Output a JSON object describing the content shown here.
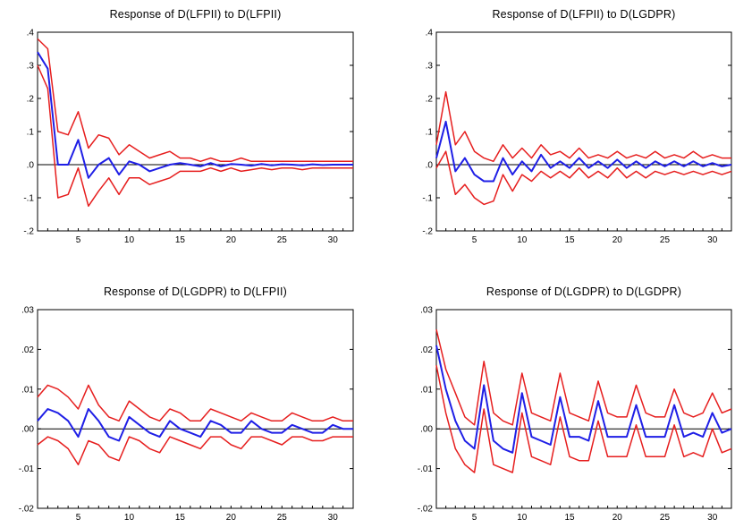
{
  "chart_data": [
    {
      "type": "line",
      "title": "Response of D(LFPII) to D(LFPII)",
      "xlim": [
        1,
        32
      ],
      "ylim": [
        -0.2,
        0.4
      ],
      "x_ticks": [
        5,
        10,
        15,
        20,
        25,
        30
      ],
      "y_ticks": [
        ".4",
        ".3",
        ".2",
        ".1",
        ".0",
        "-.1",
        "-.2"
      ],
      "y_tick_values": [
        0.4,
        0.3,
        0.2,
        0.1,
        0.0,
        -0.1,
        -0.2
      ],
      "zero_line": true,
      "series": [
        {
          "role": "response",
          "color": "#1f1fe6",
          "values": [
            0.34,
            0.29,
            0.0,
            0.0,
            0.075,
            -0.04,
            0.0,
            0.02,
            -0.03,
            0.01,
            0.0,
            -0.02,
            -0.01,
            0.0,
            0.005,
            0.0,
            -0.005,
            0.005,
            -0.005,
            0.002,
            0.0,
            -0.003,
            0.002,
            -0.002,
            0.001,
            0.0,
            -0.002,
            0.001,
            -0.001,
            0.0,
            0.0,
            0.0
          ]
        },
        {
          "role": "upper band",
          "color": "#e61e1e",
          "values": [
            0.38,
            0.35,
            0.1,
            0.09,
            0.16,
            0.05,
            0.09,
            0.08,
            0.03,
            0.06,
            0.04,
            0.02,
            0.03,
            0.04,
            0.02,
            0.02,
            0.01,
            0.02,
            0.01,
            0.01,
            0.02,
            0.01,
            0.01,
            0.01,
            0.01,
            0.01,
            0.01,
            0.01,
            0.01,
            0.01,
            0.01,
            0.01
          ]
        },
        {
          "role": "lower band",
          "color": "#e61e1e",
          "values": [
            0.3,
            0.23,
            -0.1,
            -0.09,
            -0.01,
            -0.125,
            -0.08,
            -0.04,
            -0.09,
            -0.04,
            -0.04,
            -0.06,
            -0.05,
            -0.04,
            -0.02,
            -0.02,
            -0.02,
            -0.01,
            -0.02,
            -0.01,
            -0.02,
            -0.015,
            -0.01,
            -0.015,
            -0.01,
            -0.01,
            -0.015,
            -0.01,
            -0.01,
            -0.01,
            -0.01,
            -0.01
          ]
        }
      ]
    },
    {
      "type": "line",
      "title": "Response of D(LFPII) to D(LGDPR)",
      "xlim": [
        1,
        32
      ],
      "ylim": [
        -0.2,
        0.4
      ],
      "x_ticks": [
        5,
        10,
        15,
        20,
        25,
        30
      ],
      "y_ticks": [
        ".4",
        ".3",
        ".2",
        ".1",
        ".0",
        "-.1",
        "-.2"
      ],
      "y_tick_values": [
        0.4,
        0.3,
        0.2,
        0.1,
        0.0,
        -0.1,
        -0.2
      ],
      "zero_line": true,
      "series": [
        {
          "role": "response",
          "color": "#1f1fe6",
          "values": [
            0.02,
            0.13,
            -0.02,
            0.02,
            -0.03,
            -0.05,
            -0.05,
            0.02,
            -0.03,
            0.01,
            -0.02,
            0.03,
            -0.01,
            0.01,
            -0.01,
            0.02,
            -0.01,
            0.01,
            -0.01,
            0.015,
            -0.01,
            0.01,
            -0.01,
            0.01,
            -0.005,
            0.01,
            -0.005,
            0.01,
            -0.005,
            0.005,
            -0.005,
            0.0
          ]
        },
        {
          "role": "upper band",
          "color": "#e61e1e",
          "values": [
            0.06,
            0.22,
            0.06,
            0.1,
            0.04,
            0.02,
            0.01,
            0.06,
            0.02,
            0.05,
            0.02,
            0.06,
            0.03,
            0.04,
            0.02,
            0.05,
            0.02,
            0.03,
            0.02,
            0.04,
            0.02,
            0.03,
            0.02,
            0.04,
            0.02,
            0.03,
            0.02,
            0.04,
            0.02,
            0.03,
            0.02,
            0.02
          ]
        },
        {
          "role": "lower band",
          "color": "#e61e1e",
          "values": [
            -0.01,
            0.04,
            -0.09,
            -0.06,
            -0.1,
            -0.12,
            -0.11,
            -0.03,
            -0.08,
            -0.03,
            -0.05,
            -0.02,
            -0.04,
            -0.02,
            -0.04,
            -0.01,
            -0.04,
            -0.02,
            -0.04,
            -0.01,
            -0.04,
            -0.02,
            -0.04,
            -0.02,
            -0.03,
            -0.02,
            -0.03,
            -0.02,
            -0.03,
            -0.02,
            -0.03,
            -0.02
          ]
        }
      ]
    },
    {
      "type": "line",
      "title": "Response of D(LGDPR) to D(LFPII)",
      "xlim": [
        1,
        32
      ],
      "ylim": [
        -0.02,
        0.03
      ],
      "x_ticks": [
        5,
        10,
        15,
        20,
        25,
        30
      ],
      "y_ticks": [
        ".03",
        ".02",
        ".01",
        ".00",
        "-.01",
        "-.02"
      ],
      "y_tick_values": [
        0.03,
        0.02,
        0.01,
        0.0,
        -0.01,
        -0.02
      ],
      "zero_line": true,
      "series": [
        {
          "role": "response",
          "color": "#1f1fe6",
          "values": [
            0.002,
            0.005,
            0.004,
            0.002,
            -0.002,
            0.005,
            0.002,
            -0.002,
            -0.003,
            0.003,
            0.001,
            -0.001,
            -0.002,
            0.002,
            0.0,
            -0.001,
            -0.002,
            0.002,
            0.001,
            -0.001,
            -0.001,
            0.002,
            0.0,
            -0.001,
            -0.001,
            0.001,
            0.0,
            -0.001,
            -0.001,
            0.001,
            0.0,
            0.0
          ]
        },
        {
          "role": "upper band",
          "color": "#e61e1e",
          "values": [
            0.008,
            0.011,
            0.01,
            0.008,
            0.005,
            0.011,
            0.006,
            0.003,
            0.002,
            0.007,
            0.005,
            0.003,
            0.002,
            0.005,
            0.004,
            0.002,
            0.002,
            0.005,
            0.004,
            0.003,
            0.002,
            0.004,
            0.003,
            0.002,
            0.002,
            0.004,
            0.003,
            0.002,
            0.002,
            0.003,
            0.002,
            0.002
          ]
        },
        {
          "role": "lower band",
          "color": "#e61e1e",
          "values": [
            -0.004,
            -0.002,
            -0.003,
            -0.005,
            -0.009,
            -0.003,
            -0.004,
            -0.007,
            -0.008,
            -0.002,
            -0.003,
            -0.005,
            -0.006,
            -0.002,
            -0.003,
            -0.004,
            -0.005,
            -0.002,
            -0.002,
            -0.004,
            -0.005,
            -0.002,
            -0.002,
            -0.003,
            -0.004,
            -0.002,
            -0.002,
            -0.003,
            -0.003,
            -0.002,
            -0.002,
            -0.002
          ]
        }
      ]
    },
    {
      "type": "line",
      "title": "Response of D(LGDPR) to D(LGDPR)",
      "xlim": [
        1,
        32
      ],
      "ylim": [
        -0.02,
        0.03
      ],
      "x_ticks": [
        5,
        10,
        15,
        20,
        25,
        30
      ],
      "y_ticks": [
        ".03",
        ".02",
        ".01",
        ".00",
        "-.01",
        "-.02"
      ],
      "y_tick_values": [
        0.03,
        0.02,
        0.01,
        0.0,
        -0.01,
        -0.02
      ],
      "zero_line": true,
      "series": [
        {
          "role": "response",
          "color": "#1f1fe6",
          "values": [
            0.021,
            0.01,
            0.002,
            -0.003,
            -0.005,
            0.011,
            -0.003,
            -0.005,
            -0.006,
            0.009,
            -0.002,
            -0.003,
            -0.004,
            0.008,
            -0.002,
            -0.002,
            -0.003,
            0.007,
            -0.002,
            -0.002,
            -0.002,
            0.006,
            -0.002,
            -0.002,
            -0.002,
            0.006,
            -0.002,
            -0.001,
            -0.002,
            0.004,
            -0.001,
            0.0
          ]
        },
        {
          "role": "upper band",
          "color": "#e61e1e",
          "values": [
            0.025,
            0.015,
            0.009,
            0.003,
            0.001,
            0.017,
            0.004,
            0.002,
            0.001,
            0.014,
            0.004,
            0.003,
            0.002,
            0.014,
            0.004,
            0.003,
            0.002,
            0.012,
            0.004,
            0.003,
            0.003,
            0.011,
            0.004,
            0.003,
            0.003,
            0.01,
            0.004,
            0.003,
            0.004,
            0.009,
            0.004,
            0.005
          ]
        },
        {
          "role": "lower band",
          "color": "#e61e1e",
          "values": [
            0.016,
            0.004,
            -0.005,
            -0.009,
            -0.011,
            0.005,
            -0.009,
            -0.01,
            -0.011,
            0.004,
            -0.007,
            -0.008,
            -0.009,
            0.003,
            -0.007,
            -0.008,
            -0.008,
            0.002,
            -0.007,
            -0.007,
            -0.007,
            0.001,
            -0.007,
            -0.007,
            -0.007,
            0.001,
            -0.007,
            -0.006,
            -0.007,
            0.0,
            -0.006,
            -0.005
          ]
        }
      ]
    }
  ]
}
